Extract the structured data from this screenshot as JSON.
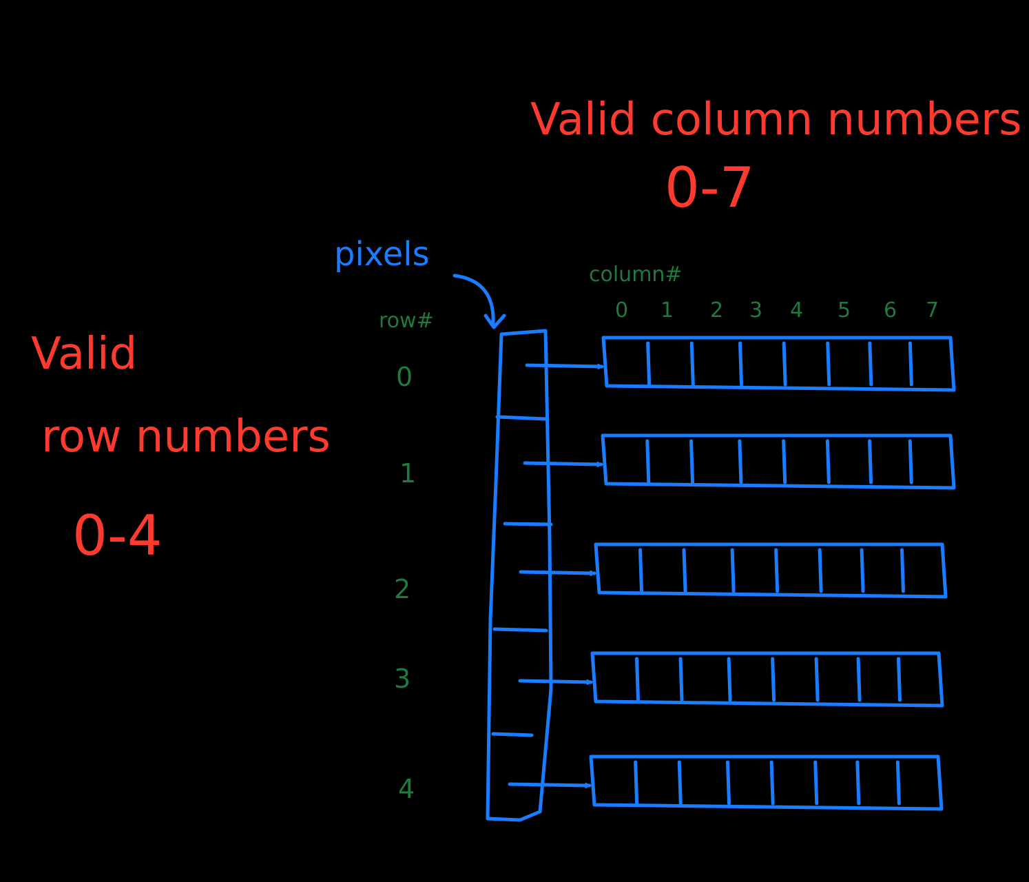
{
  "colors": {
    "background": "#000000",
    "label_red": "#ff3b2f",
    "structure_blue": "#1a7cff",
    "index_green": "#1e7a3e"
  },
  "column_heading": {
    "title": "Valid column numbers",
    "range": "0-7"
  },
  "row_heading": {
    "title_line1": "Valid",
    "title_line2": "row numbers",
    "range": "0-4"
  },
  "pointer_label": "pixels",
  "row_axis_label": "row#",
  "column_axis_label": "column#",
  "row_numbers": [
    "0",
    "1",
    "2",
    "3",
    "4"
  ],
  "column_numbers": [
    "0",
    "1",
    "2",
    "3",
    "4",
    "5",
    "6",
    "7"
  ]
}
